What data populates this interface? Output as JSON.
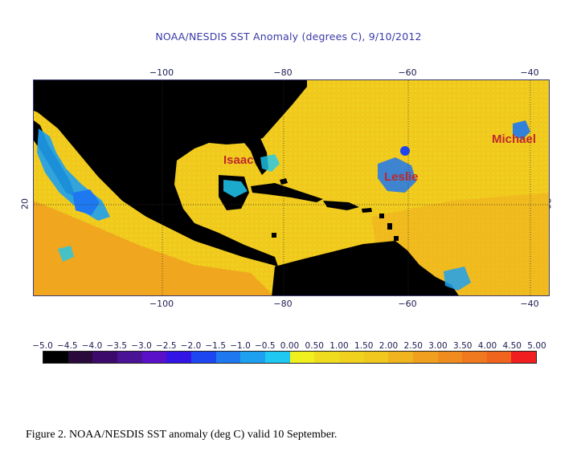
{
  "map": {
    "title": "NOAA/NESDIS SST Anomaly (degrees C), 9/10/2012",
    "lon_ticks": [
      {
        "label": "−100"
      },
      {
        "label": "−80"
      },
      {
        "label": "−60"
      },
      {
        "label": "−40"
      }
    ],
    "lat_tick_left": "20",
    "lat_tick_right": "20",
    "storms": [
      {
        "name": "Isaac",
        "color": "#c0282a"
      },
      {
        "name": "Leslie",
        "color": "#c0282a"
      },
      {
        "name": "Michael",
        "color": "#c0282a"
      }
    ]
  },
  "colorbar": {
    "ticks": [
      "−5.0",
      "−4.5",
      "−4.0",
      "−3.5",
      "−3.0",
      "−2.5",
      "−2.0",
      "−1.5",
      "−1.0",
      "−0.5",
      "0.00",
      "0.50",
      "1.00",
      "1.50",
      "2.00",
      "2.50",
      "3.00",
      "3.50",
      "4.00",
      "4.50",
      "5.00"
    ],
    "colors": [
      "#000000",
      "#2a0a3a",
      "#3c0a6a",
      "#4a1294",
      "#5a10c8",
      "#3214e6",
      "#1e46f0",
      "#1e78f0",
      "#1ea0f0",
      "#1ec8f0",
      "#f0f01e",
      "#f0dc1e",
      "#f0d21e",
      "#f0c81e",
      "#f0b41e",
      "#f0a01e",
      "#f08c1e",
      "#f0781e",
      "#f0641e",
      "#f01e1e"
    ]
  },
  "caption": "Figure 2.  NOAA/NESDIS SST anomaly (deg C) valid 10 September."
}
